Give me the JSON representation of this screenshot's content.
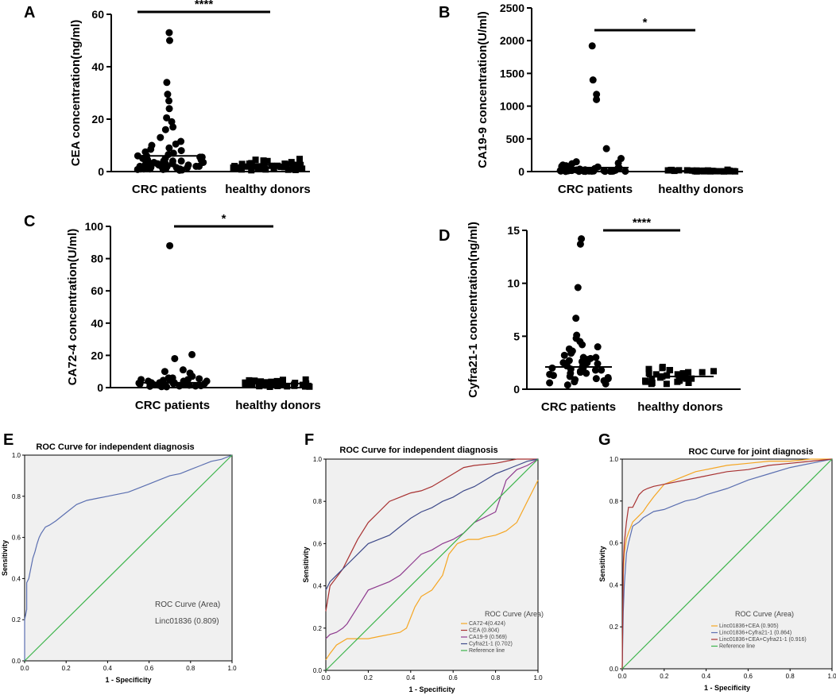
{
  "figure": {
    "width": 1052,
    "height": 875
  },
  "chart_data": [
    {
      "id": "A",
      "type": "scatter",
      "panel_label": "A",
      "ylabel": "CEA concentration(ng/ml)",
      "ylim": [
        0,
        60
      ],
      "yticks": [
        0,
        20,
        40,
        60
      ],
      "categories": [
        "CRC patients",
        "healthy donors"
      ],
      "significance": "****",
      "groups": [
        {
          "name": "CRC patients",
          "mean": 6.0,
          "values": [
            53,
            50,
            34,
            29.5,
            27,
            24,
            20.5,
            19,
            17,
            16,
            13,
            11.5,
            10.5,
            10,
            9,
            8.5,
            8,
            7.5,
            7,
            6.5,
            6,
            6,
            5.5,
            5.5,
            5,
            5,
            4.5,
            4.5,
            4,
            4,
            4,
            3.5,
            3.5,
            3.5,
            3,
            3,
            3,
            3,
            2.5,
            2.5,
            2.5,
            2.5,
            2,
            2,
            2,
            2,
            2,
            1.5,
            1.5,
            1.5,
            1.5,
            1,
            1,
            1,
            1,
            1,
            0.8,
            0.8,
            0.6,
            0.5
          ]
        },
        {
          "name": "healthy donors",
          "mean": 2.5,
          "values": [
            4.8,
            4.5,
            4.2,
            4,
            3.8,
            3.6,
            3.5,
            3.3,
            3.2,
            3,
            3,
            2.9,
            2.8,
            2.7,
            2.6,
            2.5,
            2.5,
            2.4,
            2.3,
            2.2,
            2.2,
            2.1,
            2,
            2,
            1.9,
            1.8,
            1.8,
            1.7,
            1.6,
            1.5,
            1.5,
            1.4,
            1.3,
            1.2,
            1.2,
            1.1,
            1,
            1,
            0.9,
            0.8,
            0.8,
            0.7,
            0.6,
            0.5
          ]
        }
      ]
    },
    {
      "id": "B",
      "type": "scatter",
      "panel_label": "B",
      "ylabel": "CA19-9 concentration(U/ml)",
      "ylim": [
        0,
        2500
      ],
      "yticks": [
        0,
        500,
        1000,
        1500,
        2000,
        2500
      ],
      "categories": [
        "CRC patients",
        "healthy donors"
      ],
      "significance": "*",
      "groups": [
        {
          "name": "CRC patients",
          "mean": 60,
          "values": [
            1920,
            1400,
            1180,
            1100,
            350,
            200,
            150,
            130,
            120,
            100,
            90,
            80,
            70,
            60,
            55,
            50,
            45,
            40,
            38,
            35,
            30,
            28,
            25,
            22,
            20,
            18,
            16,
            15,
            14,
            12,
            10,
            10,
            9,
            8,
            8,
            7,
            6,
            6,
            5,
            5,
            4,
            4,
            3,
            3,
            2
          ]
        },
        {
          "name": "healthy donors",
          "mean": 10,
          "values": [
            28,
            25,
            22,
            20,
            19,
            18,
            17,
            16,
            15,
            14,
            13,
            12,
            12,
            11,
            10,
            10,
            9,
            9,
            8,
            8,
            7,
            7,
            6,
            6,
            5,
            5,
            4,
            4,
            3,
            3,
            2,
            2
          ]
        }
      ]
    },
    {
      "id": "C",
      "type": "scatter",
      "panel_label": "C",
      "ylabel": "CA72-4 concentration(U/ml)",
      "ylim": [
        0,
        100
      ],
      "yticks": [
        0,
        20,
        40,
        60,
        80,
        100
      ],
      "categories": [
        "CRC patients",
        "healthy donors"
      ],
      "significance": "*",
      "groups": [
        {
          "name": "CRC patients",
          "mean": 3.0,
          "values": [
            88,
            20.5,
            18,
            11,
            10,
            9,
            7,
            6,
            6,
            5.5,
            5,
            5,
            4.5,
            4.5,
            4,
            4,
            4,
            3.5,
            3.5,
            3,
            3,
            3,
            2.8,
            2.5,
            2.5,
            2.2,
            2,
            2,
            2,
            1.8,
            1.5,
            1.5,
            1.2,
            1,
            1,
            1,
            0.8,
            0.6,
            0.5
          ]
        },
        {
          "name": "healthy donors",
          "mean": 2.5,
          "values": [
            5,
            4.8,
            4.5,
            4.3,
            4,
            3.8,
            3.6,
            3.5,
            3.3,
            3.1,
            3,
            2.9,
            2.8,
            2.6,
            2.5,
            2.4,
            2.3,
            2.2,
            2.1,
            2,
            1.9,
            1.8,
            1.7,
            1.6,
            1.5,
            1.4,
            1.3,
            1.2,
            1.1,
            1,
            0.9,
            0.8,
            0.7,
            0.6,
            0.5
          ]
        }
      ]
    },
    {
      "id": "D",
      "type": "scatter",
      "panel_label": "D",
      "ylabel": "Cyfra21-1 concentration(ng/ml)",
      "ylim": [
        0,
        15
      ],
      "yticks": [
        0,
        5,
        10,
        15
      ],
      "categories": [
        "CRC patients",
        "healthy donors"
      ],
      "significance": "****",
      "groups": [
        {
          "name": "CRC patients",
          "mean": 2.1,
          "values": [
            14.2,
            13.7,
            9.6,
            6.7,
            5.1,
            4.8,
            4.5,
            4.2,
            4,
            3.8,
            3.6,
            3.4,
            3.2,
            3,
            3,
            2.9,
            2.8,
            2.7,
            2.6,
            2.5,
            2.5,
            2.4,
            2.3,
            2.2,
            2.2,
            2.1,
            2,
            2,
            1.9,
            1.8,
            1.8,
            1.7,
            1.6,
            1.5,
            1.5,
            1.4,
            1.3,
            1.2,
            1.1,
            1,
            1,
            0.9,
            0.8,
            0.7,
            0.6,
            0.5,
            0.4
          ]
        },
        {
          "name": "healthy donors",
          "mean": 1.2,
          "values": [
            2.1,
            2,
            1.9,
            1.8,
            1.8,
            1.7,
            1.6,
            1.6,
            1.5,
            1.5,
            1.4,
            1.4,
            1.3,
            1.3,
            1.2,
            1.2,
            1.1,
            1.1,
            1,
            1,
            0.9,
            0.9,
            0.8,
            0.8,
            0.7,
            0.7,
            0.6,
            0.6,
            0.5,
            0.5
          ]
        }
      ]
    },
    {
      "id": "E",
      "type": "line",
      "panel_label": "E",
      "title": "ROC Curve for independent diagnosis",
      "xlabel": "1 - Specificity",
      "ylabel": "Sensitivity",
      "xlim": [
        0,
        1
      ],
      "ylim": [
        0,
        1
      ],
      "ticks": [
        "0.0",
        "0.2",
        "0.4",
        "0.6",
        "0.8",
        "1.0"
      ],
      "legend_title": "ROC Curve (Area)",
      "legend_position": "center-right",
      "series": [
        {
          "name": "Linc01836 (0.809)",
          "color": "#5b6fb0",
          "x": [
            0,
            0,
            0.01,
            0.01,
            0.02,
            0.03,
            0.04,
            0.05,
            0.06,
            0.07,
            0.08,
            0.1,
            0.12,
            0.15,
            0.2,
            0.25,
            0.3,
            0.35,
            0.4,
            0.45,
            0.5,
            0.55,
            0.6,
            0.65,
            0.7,
            0.75,
            0.8,
            0.85,
            0.9,
            0.95,
            1
          ],
          "y": [
            0,
            0.2,
            0.25,
            0.38,
            0.4,
            0.45,
            0.5,
            0.53,
            0.57,
            0.6,
            0.62,
            0.65,
            0.66,
            0.68,
            0.72,
            0.76,
            0.78,
            0.79,
            0.8,
            0.81,
            0.82,
            0.84,
            0.86,
            0.88,
            0.9,
            0.91,
            0.93,
            0.95,
            0.97,
            0.98,
            1
          ]
        },
        {
          "name": "Reference line",
          "color": "#3cb44b",
          "x": [
            0,
            1
          ],
          "y": [
            0,
            1
          ],
          "in_legend": false
        }
      ]
    },
    {
      "id": "F",
      "type": "line",
      "panel_label": "F",
      "title": "ROC Curve for independent diagnosis",
      "xlabel": "1 - Specificity",
      "ylabel": "Sensitivity",
      "xlim": [
        0,
        1
      ],
      "ylim": [
        0,
        1
      ],
      "ticks": [
        "0.0",
        "0.2",
        "0.4",
        "0.6",
        "0.8",
        "1.0"
      ],
      "legend_title": "ROC Curve (Area)",
      "legend_position": "bottom-right",
      "series": [
        {
          "name": "CA72-4(0.424)",
          "color": "#f5a623",
          "x": [
            0,
            0.02,
            0.05,
            0.1,
            0.15,
            0.2,
            0.25,
            0.3,
            0.35,
            0.38,
            0.42,
            0.45,
            0.5,
            0.55,
            0.58,
            0.62,
            0.67,
            0.72,
            0.75,
            0.8,
            0.85,
            0.9,
            0.95,
            1
          ],
          "y": [
            0.05,
            0.08,
            0.12,
            0.15,
            0.15,
            0.15,
            0.16,
            0.17,
            0.18,
            0.2,
            0.3,
            0.35,
            0.38,
            0.45,
            0.55,
            0.6,
            0.62,
            0.62,
            0.63,
            0.64,
            0.66,
            0.7,
            0.8,
            0.9
          ]
        },
        {
          "name": "CEA (0.804)",
          "color": "#a83232",
          "x": [
            0,
            0.02,
            0.05,
            0.08,
            0.1,
            0.15,
            0.2,
            0.25,
            0.3,
            0.35,
            0.4,
            0.45,
            0.5,
            0.55,
            0.6,
            0.65,
            0.7,
            0.8,
            0.9,
            1
          ],
          "y": [
            0.28,
            0.4,
            0.44,
            0.48,
            0.52,
            0.62,
            0.7,
            0.75,
            0.8,
            0.82,
            0.84,
            0.85,
            0.87,
            0.9,
            0.93,
            0.96,
            0.97,
            0.98,
            1,
            1
          ]
        },
        {
          "name": "CA19-9 (0.569)",
          "color": "#8e3a8e",
          "x": [
            0,
            0.02,
            0.05,
            0.08,
            0.1,
            0.15,
            0.2,
            0.25,
            0.3,
            0.35,
            0.4,
            0.45,
            0.5,
            0.55,
            0.6,
            0.65,
            0.7,
            0.8,
            0.85,
            0.9,
            0.95,
            1
          ],
          "y": [
            0.15,
            0.17,
            0.18,
            0.2,
            0.22,
            0.3,
            0.38,
            0.4,
            0.42,
            0.45,
            0.5,
            0.55,
            0.57,
            0.6,
            0.62,
            0.65,
            0.7,
            0.75,
            0.9,
            0.95,
            0.97,
            1
          ]
        },
        {
          "name": "Cyfra21-1 (0.702)",
          "color": "#3e4a8a",
          "x": [
            0,
            0.02,
            0.05,
            0.1,
            0.15,
            0.2,
            0.25,
            0.3,
            0.35,
            0.4,
            0.45,
            0.5,
            0.55,
            0.6,
            0.65,
            0.7,
            0.75,
            0.8,
            0.85,
            0.9,
            0.95,
            1
          ],
          "y": [
            0.38,
            0.42,
            0.45,
            0.5,
            0.55,
            0.6,
            0.62,
            0.64,
            0.68,
            0.72,
            0.75,
            0.77,
            0.8,
            0.82,
            0.85,
            0.87,
            0.9,
            0.93,
            0.95,
            0.97,
            0.99,
            1
          ]
        },
        {
          "name": "Reference line",
          "color": "#3cb44b",
          "x": [
            0,
            1
          ],
          "y": [
            0,
            1
          ]
        }
      ]
    },
    {
      "id": "G",
      "type": "line",
      "panel_label": "G",
      "title": "ROC Curve for joint diagnosis",
      "xlabel": "1 - Specificity",
      "ylabel": "Sensitivity",
      "xlim": [
        0,
        1
      ],
      "ylim": [
        0,
        1
      ],
      "ticks": [
        "0.0",
        "0.2",
        "0.4",
        "0.6",
        "0.8",
        "1.0"
      ],
      "legend_title": "ROC Curve (Area)",
      "legend_position": "bottom-right",
      "series": [
        {
          "name": "Linc01836+CEA (0.905)",
          "color": "#f5a623",
          "x": [
            0,
            0.005,
            0.01,
            0.02,
            0.03,
            0.05,
            0.08,
            0.1,
            0.12,
            0.15,
            0.2,
            0.25,
            0.3,
            0.35,
            0.4,
            0.5,
            0.6,
            0.7,
            0.8,
            0.9,
            1
          ],
          "y": [
            0,
            0.45,
            0.55,
            0.62,
            0.65,
            0.7,
            0.73,
            0.75,
            0.78,
            0.82,
            0.88,
            0.9,
            0.92,
            0.94,
            0.95,
            0.97,
            0.98,
            0.99,
            0.99,
            1,
            1
          ]
        },
        {
          "name": "Linc01836+Cyfra21-1 (0.864)",
          "color": "#5b6fb0",
          "x": [
            0,
            0.005,
            0.01,
            0.02,
            0.03,
            0.05,
            0.08,
            0.1,
            0.15,
            0.2,
            0.25,
            0.3,
            0.35,
            0.4,
            0.5,
            0.6,
            0.7,
            0.8,
            0.9,
            1
          ],
          "y": [
            0,
            0.27,
            0.4,
            0.55,
            0.6,
            0.68,
            0.7,
            0.72,
            0.75,
            0.76,
            0.78,
            0.8,
            0.81,
            0.83,
            0.86,
            0.9,
            0.93,
            0.96,
            0.98,
            1
          ]
        },
        {
          "name": "Linc01836+CEA+Cyfra21-1 (0.916)",
          "color": "#a83232",
          "x": [
            0,
            0.005,
            0.01,
            0.02,
            0.03,
            0.05,
            0.08,
            0.1,
            0.12,
            0.15,
            0.2,
            0.3,
            0.4,
            0.5,
            0.6,
            0.7,
            0.8,
            0.9,
            1
          ],
          "y": [
            0,
            0.5,
            0.6,
            0.7,
            0.77,
            0.77,
            0.83,
            0.85,
            0.86,
            0.87,
            0.88,
            0.9,
            0.92,
            0.94,
            0.95,
            0.97,
            0.98,
            0.99,
            1
          ]
        },
        {
          "name": "Reference line",
          "color": "#3cb44b",
          "x": [
            0,
            1
          ],
          "y": [
            0,
            1
          ]
        }
      ]
    }
  ]
}
